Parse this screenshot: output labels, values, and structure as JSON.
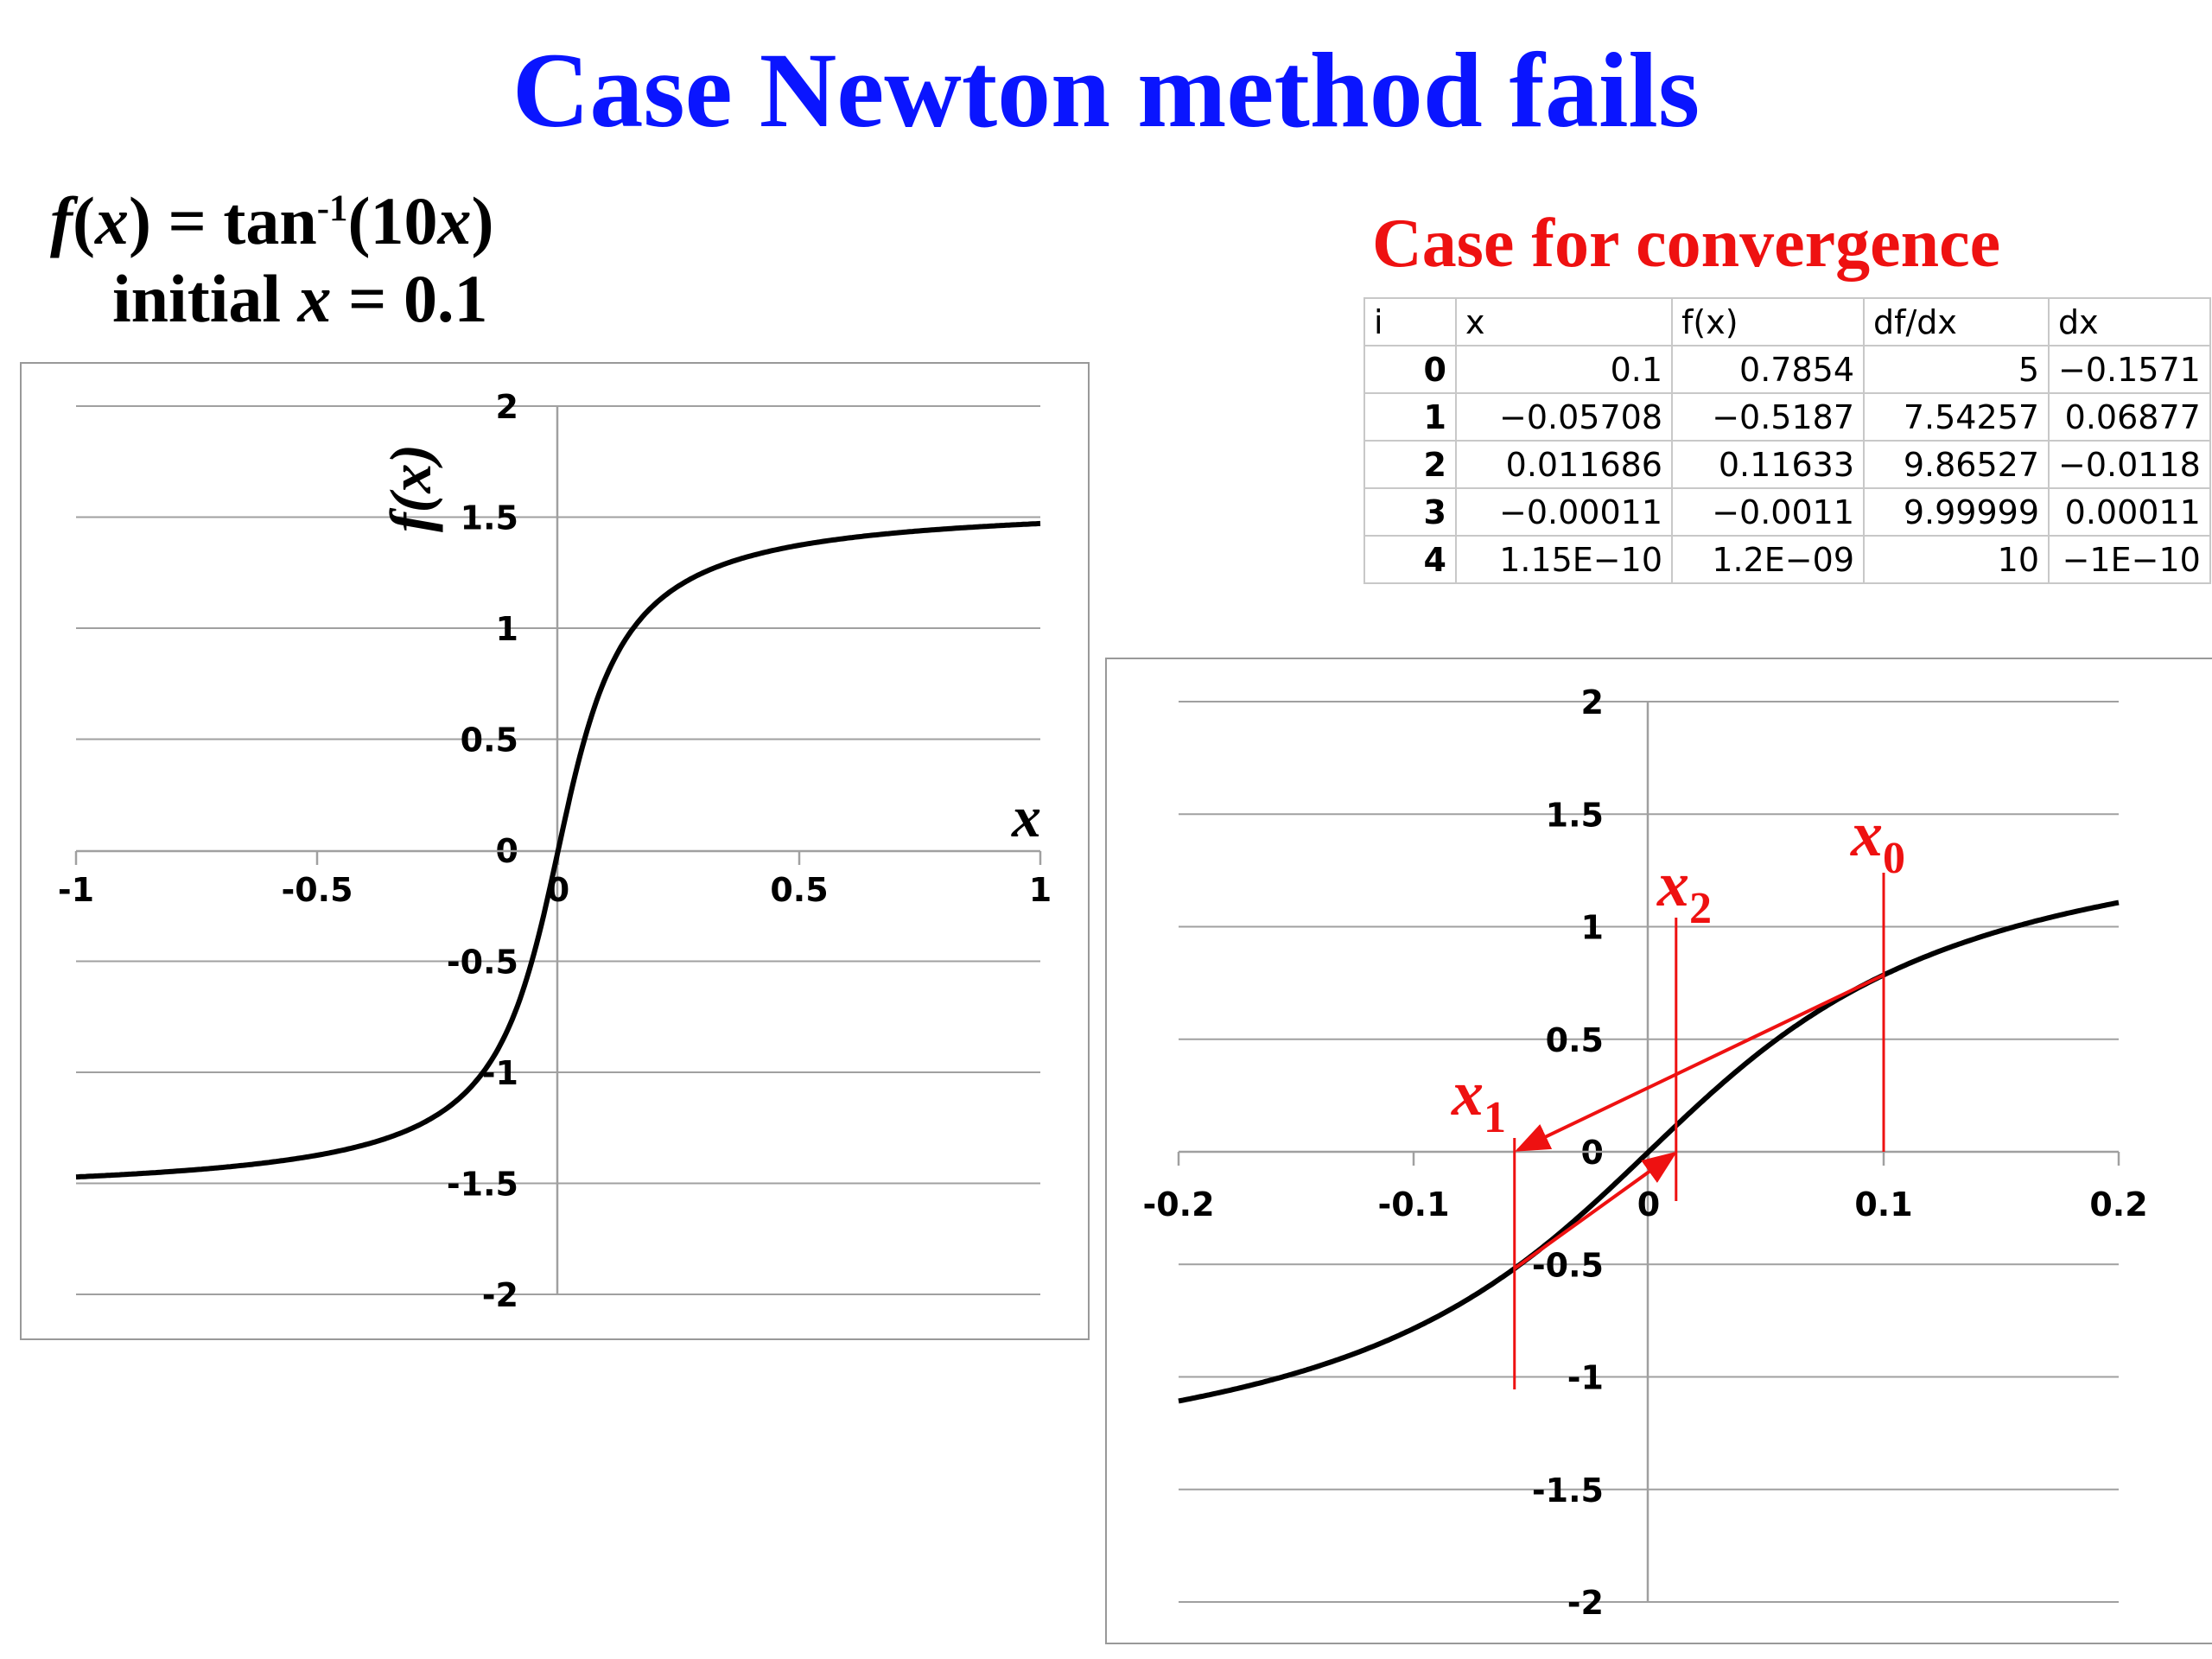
{
  "title": "Case Newton method fails",
  "function": {
    "f_label": "f",
    "x_var": "x",
    "equals_tan": "= tan",
    "inverse_exp": "-1",
    "arg_open": "(10",
    "arg_close": ")",
    "initial_word": "initial",
    "initial_value": "= 0.1"
  },
  "convergence_title": "Case for convergence",
  "table": {
    "headers": [
      "i",
      "x",
      "f(x)",
      "df/dx",
      "dx"
    ],
    "rows": [
      [
        "0",
        "0.1",
        "0.7854",
        "5",
        "−0.1571"
      ],
      [
        "1",
        "−0.05708",
        "−0.5187",
        "7.54257",
        "0.06877"
      ],
      [
        "2",
        "0.011686",
        "0.11633",
        "9.86527",
        "−0.0118"
      ],
      [
        "3",
        "−0.00011",
        "−0.0011",
        "9.99999",
        "0.00011"
      ],
      [
        "4",
        "1.15E−10",
        "1.2E−09",
        "10",
        "−1E−10"
      ]
    ]
  },
  "colors": {
    "title": "#0a15ff",
    "accent": "#ee1111",
    "curve": "#000000",
    "grid": "#a0a0a0"
  },
  "chart_data": [
    {
      "type": "line",
      "function": "arctan(10x)",
      "x": [
        -1,
        -0.8,
        -0.6,
        -0.5,
        -0.4,
        -0.3,
        -0.2,
        -0.15,
        -0.1,
        -0.05,
        0,
        0.05,
        0.1,
        0.15,
        0.2,
        0.3,
        0.4,
        0.5,
        0.6,
        0.8,
        1
      ],
      "y": [
        -1.4711,
        -1.4464,
        -1.4056,
        -1.3734,
        -1.3258,
        -1.249,
        -1.1071,
        -0.9828,
        -0.7854,
        -0.4636,
        0,
        0.4636,
        0.7854,
        0.9828,
        1.1071,
        1.249,
        1.3258,
        1.3734,
        1.4056,
        1.4464,
        1.4711
      ],
      "xlim": [
        -1,
        1
      ],
      "ylim": [
        -2,
        2
      ],
      "xticks": [
        "-1",
        "-0.5",
        "0",
        "0.5",
        "1"
      ],
      "yticks": [
        "2",
        "1.5",
        "1",
        "0.5",
        "0",
        "-0.5",
        "-1",
        "-1.5",
        "-2"
      ],
      "xlabel": "x",
      "ylabel": "f(x)",
      "grid": true
    },
    {
      "type": "line",
      "function": "arctan(10x)",
      "x": [
        -0.2,
        -0.15,
        -0.1,
        -0.08,
        -0.06,
        -0.04,
        -0.02,
        0,
        0.02,
        0.04,
        0.06,
        0.08,
        0.1,
        0.15,
        0.2
      ],
      "y": [
        -1.1071,
        -0.9828,
        -0.7854,
        -0.6747,
        -0.5404,
        -0.3805,
        -0.1974,
        0,
        0.1974,
        0.3805,
        0.5404,
        0.6747,
        0.7854,
        0.9828,
        1.1071
      ],
      "xlim": [
        -0.2,
        0.2
      ],
      "ylim": [
        -2,
        2
      ],
      "xticks": [
        "-0.2",
        "-0.1",
        "0",
        "0.1",
        "0.2"
      ],
      "yticks": [
        "2",
        "1.5",
        "1",
        "0.5",
        "0",
        "-0.5",
        "-1",
        "-1.5",
        "-2"
      ],
      "grid": true,
      "newton_iterates": [
        {
          "label": "x",
          "sub": "0",
          "x": 0.1,
          "fx": 0.7854
        },
        {
          "label": "x",
          "sub": "1",
          "x": -0.05708,
          "fx": -0.5187
        },
        {
          "label": "x",
          "sub": "2",
          "x": 0.011686,
          "fx": 0.11633
        }
      ]
    }
  ]
}
